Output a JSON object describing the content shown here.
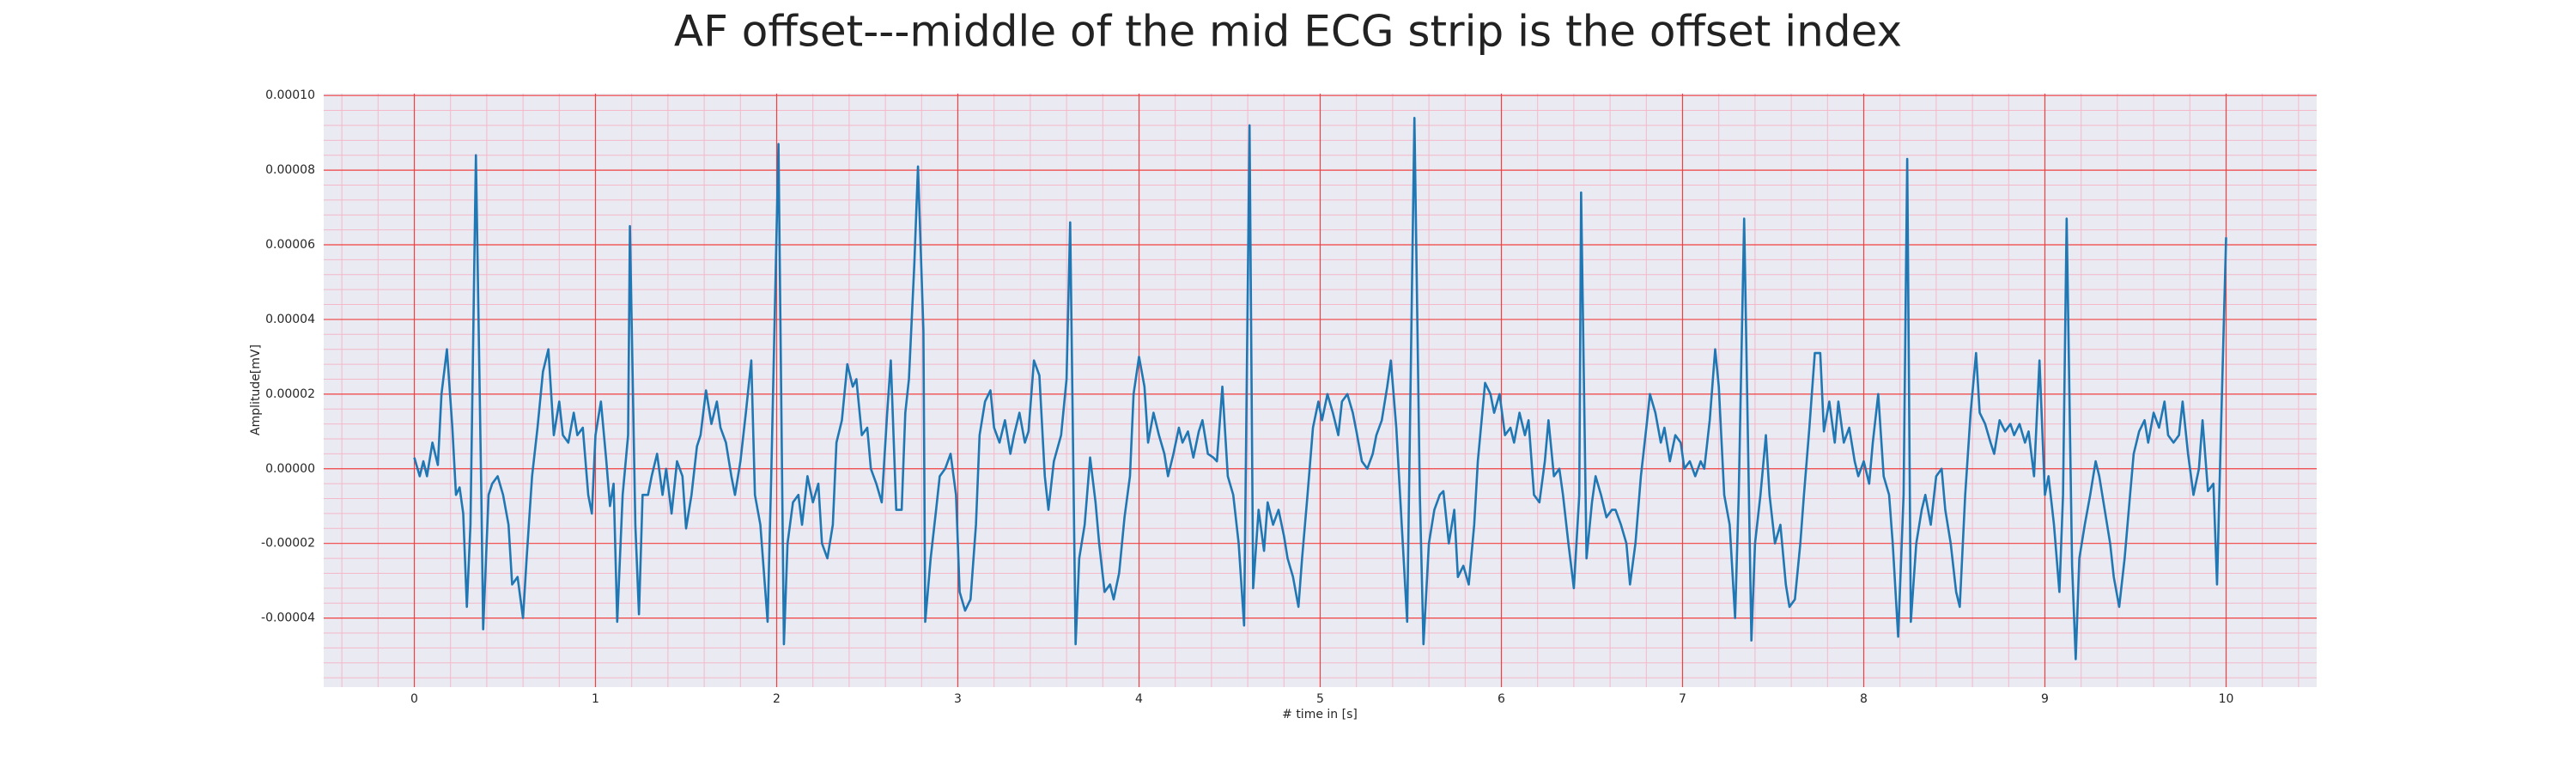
{
  "chart_data": {
    "type": "line",
    "title": "AF offset---middle of the mid ECG strip is the offset index",
    "x_label": "# time in [s]",
    "y_label": "Amplitude[mV]",
    "xlim": [
      -0.5,
      10.5
    ],
    "ylim": [
      -5.85e-05,
      0.0001005
    ],
    "xticks": [
      0,
      1,
      2,
      3,
      4,
      5,
      6,
      7,
      8,
      9,
      10
    ],
    "yticks": [
      {
        "value": -4e-05,
        "label": "-0.00004"
      },
      {
        "value": -2e-05,
        "label": "-0.00002"
      },
      {
        "value": 0,
        "label": "0.00000"
      },
      {
        "value": 2e-05,
        "label": "0.00002"
      },
      {
        "value": 4e-05,
        "label": "0.00004"
      },
      {
        "value": 6e-05,
        "label": "0.00006"
      },
      {
        "value": 8e-05,
        "label": "0.00008"
      },
      {
        "value": 0.0001,
        "label": "0.00010"
      }
    ],
    "grid": true,
    "grid_color": "#f04040",
    "minor_grid": true,
    "minor_grid_color": "#f4b8c8",
    "background": "#eaeaf2",
    "x": [
      0,
      0.03,
      0.05,
      0.07,
      0.1,
      0.13,
      0.15,
      0.18,
      0.21,
      0.23,
      0.25,
      0.27,
      0.29,
      0.31,
      0.34,
      0.37,
      0.38,
      0.41,
      0.43,
      0.46,
      0.49,
      0.52,
      0.54,
      0.57,
      0.6,
      0.62,
      0.65,
      0.68,
      0.71,
      0.74,
      0.77,
      0.8,
      0.82,
      0.85,
      0.88,
      0.9,
      0.93,
      0.96,
      0.98,
      1.0,
      1.03,
      1.06,
      1.08,
      1.1,
      1.12,
      1.15,
      1.18,
      1.19,
      1.22,
      1.24,
      1.26,
      1.29,
      1.31,
      1.34,
      1.37,
      1.39,
      1.42,
      1.45,
      1.48,
      1.5,
      1.53,
      1.56,
      1.58,
      1.61,
      1.64,
      1.67,
      1.69,
      1.72,
      1.75,
      1.77,
      1.8,
      1.83,
      1.86,
      1.88,
      1.91,
      1.95,
      1.97,
      2.01,
      2.04,
      2.06,
      2.09,
      2.12,
      2.14,
      2.17,
      2.2,
      2.23,
      2.25,
      2.28,
      2.31,
      2.33,
      2.36,
      2.39,
      2.42,
      2.44,
      2.47,
      2.5,
      2.52,
      2.55,
      2.58,
      2.61,
      2.63,
      2.66,
      2.69,
      2.71,
      2.73,
      2.76,
      2.78,
      2.81,
      2.82,
      2.85,
      2.88,
      2.9,
      2.93,
      2.96,
      2.99,
      3.01,
      3.04,
      3.07,
      3.1,
      3.12,
      3.15,
      3.18,
      3.2,
      3.23,
      3.26,
      3.29,
      3.31,
      3.34,
      3.37,
      3.39,
      3.42,
      3.45,
      3.48,
      3.5,
      3.53,
      3.57,
      3.6,
      3.62,
      3.65,
      3.67,
      3.7,
      3.73,
      3.76,
      3.78,
      3.81,
      3.84,
      3.86,
      3.89,
      3.92,
      3.95,
      3.97,
      4.0,
      4.03,
      4.05,
      4.08,
      4.11,
      4.14,
      4.16,
      4.19,
      4.22,
      4.24,
      4.27,
      4.3,
      4.33,
      4.35,
      4.38,
      4.41,
      4.43,
      4.46,
      4.49,
      4.52,
      4.55,
      4.58,
      4.61,
      4.63,
      4.66,
      4.69,
      4.71,
      4.74,
      4.77,
      4.8,
      4.82,
      4.85,
      4.88,
      4.9,
      4.93,
      4.96,
      4.99,
      5.01,
      5.04,
      5.07,
      5.1,
      5.12,
      5.15,
      5.18,
      5.2,
      5.23,
      5.26,
      5.29,
      5.31,
      5.34,
      5.37,
      5.39,
      5.42,
      5.45,
      5.48,
      5.52,
      5.55,
      5.57,
      5.6,
      5.63,
      5.66,
      5.68,
      5.71,
      5.74,
      5.76,
      5.79,
      5.82,
      5.85,
      5.87,
      5.91,
      5.94,
      5.96,
      5.99,
      6.02,
      6.05,
      6.07,
      6.1,
      6.13,
      6.15,
      6.18,
      6.21,
      6.24,
      6.26,
      6.29,
      6.32,
      6.34,
      6.37,
      6.4,
      6.43,
      6.44,
      6.47,
      6.5,
      6.52,
      6.55,
      6.58,
      6.61,
      6.63,
      6.66,
      6.69,
      6.71,
      6.74,
      6.77,
      6.8,
      6.82,
      6.85,
      6.88,
      6.9,
      6.93,
      6.96,
      6.99,
      7.01,
      7.04,
      7.07,
      7.1,
      7.12,
      7.15,
      7.18,
      7.2,
      7.23,
      7.26,
      7.29,
      7.31,
      7.34,
      7.38,
      7.4,
      7.43,
      7.46,
      7.48,
      7.51,
      7.54,
      7.57,
      7.59,
      7.62,
      7.65,
      7.67,
      7.7,
      7.73,
      7.76,
      7.78,
      7.81,
      7.84,
      7.86,
      7.89,
      7.92,
      7.95,
      7.97,
      8.0,
      8.03,
      8.05,
      8.08,
      8.11,
      8.14,
      8.16,
      8.19,
      8.22,
      8.24,
      8.26,
      8.29,
      8.32,
      8.34,
      8.37,
      8.4,
      8.43,
      8.45,
      8.48,
      8.51,
      8.53,
      8.56,
      8.59,
      8.62,
      8.64,
      8.67,
      8.7,
      8.72,
      8.75,
      8.78,
      8.81,
      8.83,
      8.86,
      8.89,
      8.91,
      8.94,
      8.97,
      9.0,
      9.02,
      9.05,
      9.08,
      9.1,
      9.12,
      9.15,
      9.17,
      9.19,
      9.22,
      9.25,
      9.28,
      9.3,
      9.33,
      9.36,
      9.38,
      9.41,
      9.44,
      9.47,
      9.49,
      9.52,
      9.55,
      9.57,
      9.6,
      9.63,
      9.66,
      9.68,
      9.71,
      9.74,
      9.76,
      9.79,
      9.82,
      9.85,
      9.87,
      9.9,
      9.93,
      9.95,
      9.97,
      10.0
    ],
    "series": [
      {
        "color": "#1f77b4",
        "values": [
          3e-06,
          -2e-06,
          2e-06,
          -2e-06,
          7e-06,
          1e-06,
          2e-05,
          3.2e-05,
          1.1e-05,
          -7e-06,
          -5e-06,
          -1.2e-05,
          -3.7e-05,
          -1.5e-05,
          8.4e-05,
          -7e-06,
          -4.3e-05,
          -7e-06,
          -4e-06,
          -2e-06,
          -7e-06,
          -1.5e-05,
          -3.1e-05,
          -2.9e-05,
          -4e-05,
          -2.4e-05,
          -2e-06,
          1.1e-05,
          2.6e-05,
          3.2e-05,
          9e-06,
          1.8e-05,
          9e-06,
          7e-06,
          1.5e-05,
          9e-06,
          1.1e-05,
          -7e-06,
          -1.2e-05,
          9e-06,
          1.8e-05,
          2e-06,
          -1e-05,
          -4e-06,
          -4.1e-05,
          -7e-06,
          9e-06,
          6.5e-05,
          -1.5e-05,
          -3.9e-05,
          -7e-06,
          -7e-06,
          -2e-06,
          4e-06,
          -7e-06,
          0,
          -1.2e-05,
          2e-06,
          -2e-06,
          -1.6e-05,
          -7e-06,
          6e-06,
          9e-06,
          2.1e-05,
          1.2e-05,
          1.8e-05,
          1.1e-05,
          7e-06,
          -2e-06,
          -7e-06,
          2e-06,
          1.5e-05,
          2.9e-05,
          -7e-06,
          -1.5e-05,
          -4.1e-05,
          -2e-06,
          8.7e-05,
          -4.7e-05,
          -2e-05,
          -9e-06,
          -7e-06,
          -1.5e-05,
          -2e-06,
          -9e-06,
          -4e-06,
          -2e-05,
          -2.4e-05,
          -1.5e-05,
          7e-06,
          1.3e-05,
          2.8e-05,
          2.2e-05,
          2.4e-05,
          9e-06,
          1.1e-05,
          0,
          -4e-06,
          -9e-06,
          1.5e-05,
          2.9e-05,
          -1.1e-05,
          -1.1e-05,
          1.5e-05,
          2.4e-05,
          5.5e-05,
          8.1e-05,
          3.7e-05,
          -4.1e-05,
          -2.4e-05,
          -1.1e-05,
          -2e-06,
          0,
          4e-06,
          -7e-06,
          -3.3e-05,
          -3.8e-05,
          -3.5e-05,
          -1.5e-05,
          9e-06,
          1.8e-05,
          2.1e-05,
          1.1e-05,
          7e-06,
          1.3e-05,
          4e-06,
          9e-06,
          1.5e-05,
          7e-06,
          1e-05,
          2.9e-05,
          2.5e-05,
          -2e-06,
          -1.1e-05,
          2e-06,
          9e-06,
          2.4e-05,
          6.6e-05,
          -4.7e-05,
          -2.4e-05,
          -1.5e-05,
          3e-06,
          -9e-06,
          -2e-05,
          -3.3e-05,
          -3.1e-05,
          -3.5e-05,
          -2.8e-05,
          -1.3e-05,
          -2e-06,
          2e-05,
          3e-05,
          2.2e-05,
          7e-06,
          1.5e-05,
          9e-06,
          4e-06,
          -2e-06,
          4e-06,
          1.1e-05,
          7e-06,
          1e-05,
          3e-06,
          1e-05,
          1.3e-05,
          4e-06,
          3e-06,
          2e-06,
          2.2e-05,
          -2e-06,
          -7e-06,
          -2e-05,
          -4.2e-05,
          9.2e-05,
          -3.2e-05,
          -1.1e-05,
          -2.2e-05,
          -9e-06,
          -1.5e-05,
          -1.1e-05,
          -1.8e-05,
          -2.4e-05,
          -2.9e-05,
          -3.7e-05,
          -2.4e-05,
          -7e-06,
          1.1e-05,
          1.8e-05,
          1.3e-05,
          2e-05,
          1.5e-05,
          9e-06,
          1.8e-05,
          2e-05,
          1.5e-05,
          1e-05,
          2e-06,
          0,
          4e-06,
          9e-06,
          1.3e-05,
          2.2e-05,
          2.9e-05,
          1.1e-05,
          -1.5e-05,
          -4.1e-05,
          9.4e-05,
          -7e-06,
          -4.7e-05,
          -2e-05,
          -1.1e-05,
          -7e-06,
          -6e-06,
          -2e-05,
          -1.1e-05,
          -2.9e-05,
          -2.6e-05,
          -3.1e-05,
          -1.5e-05,
          2e-06,
          2.3e-05,
          2e-05,
          1.5e-05,
          2e-05,
          9e-06,
          1.1e-05,
          7e-06,
          1.5e-05,
          9e-06,
          1.3e-05,
          -7e-06,
          -9e-06,
          2e-06,
          1.3e-05,
          -2e-06,
          0,
          -7e-06,
          -2e-05,
          -3.2e-05,
          -7e-06,
          7.4e-05,
          -2.4e-05,
          -9e-06,
          -2e-06,
          -7e-06,
          -1.3e-05,
          -1.1e-05,
          -1.1e-05,
          -1.5e-05,
          -2e-05,
          -3.1e-05,
          -2e-05,
          -2e-06,
          1.1e-05,
          2e-05,
          1.5e-05,
          7e-06,
          1.1e-05,
          2e-06,
          9e-06,
          7e-06,
          0,
          2e-06,
          -2e-06,
          2e-06,
          0,
          1.3e-05,
          3.2e-05,
          2.2e-05,
          -7e-06,
          -1.5e-05,
          -4e-05,
          -7e-06,
          6.7e-05,
          -4.6e-05,
          -2e-05,
          -7e-06,
          9e-06,
          -7e-06,
          -2e-05,
          -1.5e-05,
          -3.1e-05,
          -3.7e-05,
          -3.5e-05,
          -2e-05,
          -7e-06,
          1.1e-05,
          3.1e-05,
          3.1e-05,
          1e-05,
          1.8e-05,
          7e-06,
          1.8e-05,
          7e-06,
          1.1e-05,
          2e-06,
          -2e-06,
          2e-06,
          -4e-06,
          7e-06,
          2e-05,
          -2e-06,
          -7e-06,
          -2e-05,
          -4.5e-05,
          -7e-06,
          8.3e-05,
          -4.1e-05,
          -2e-05,
          -1.1e-05,
          -7e-06,
          -1.5e-05,
          -2e-06,
          0,
          -1.1e-05,
          -2e-05,
          -3.3e-05,
          -3.7e-05,
          -7e-06,
          1.5e-05,
          3.1e-05,
          1.5e-05,
          1.2e-05,
          7e-06,
          4e-06,
          1.3e-05,
          1e-05,
          1.2e-05,
          9e-06,
          1.2e-05,
          7e-06,
          1e-05,
          -2e-06,
          2.9e-05,
          -7e-06,
          -2e-06,
          -1.5e-05,
          -3.3e-05,
          -7e-06,
          6.7e-05,
          -2.6e-05,
          -5.1e-05,
          -2.4e-05,
          -1.5e-05,
          -7e-06,
          2e-06,
          -2e-06,
          -1.1e-05,
          -2e-05,
          -2.9e-05,
          -3.7e-05,
          -2.4e-05,
          -7e-06,
          4e-06,
          1e-05,
          1.3e-05,
          7e-06,
          1.5e-05,
          1.1e-05,
          1.8e-05,
          9e-06,
          7e-06,
          9e-06,
          1.8e-05,
          4e-06,
          -7e-06,
          0,
          1.3e-05,
          -6e-06,
          -4e-06,
          -3.1e-05,
          7e-06,
          6.2e-05
        ]
      }
    ]
  }
}
